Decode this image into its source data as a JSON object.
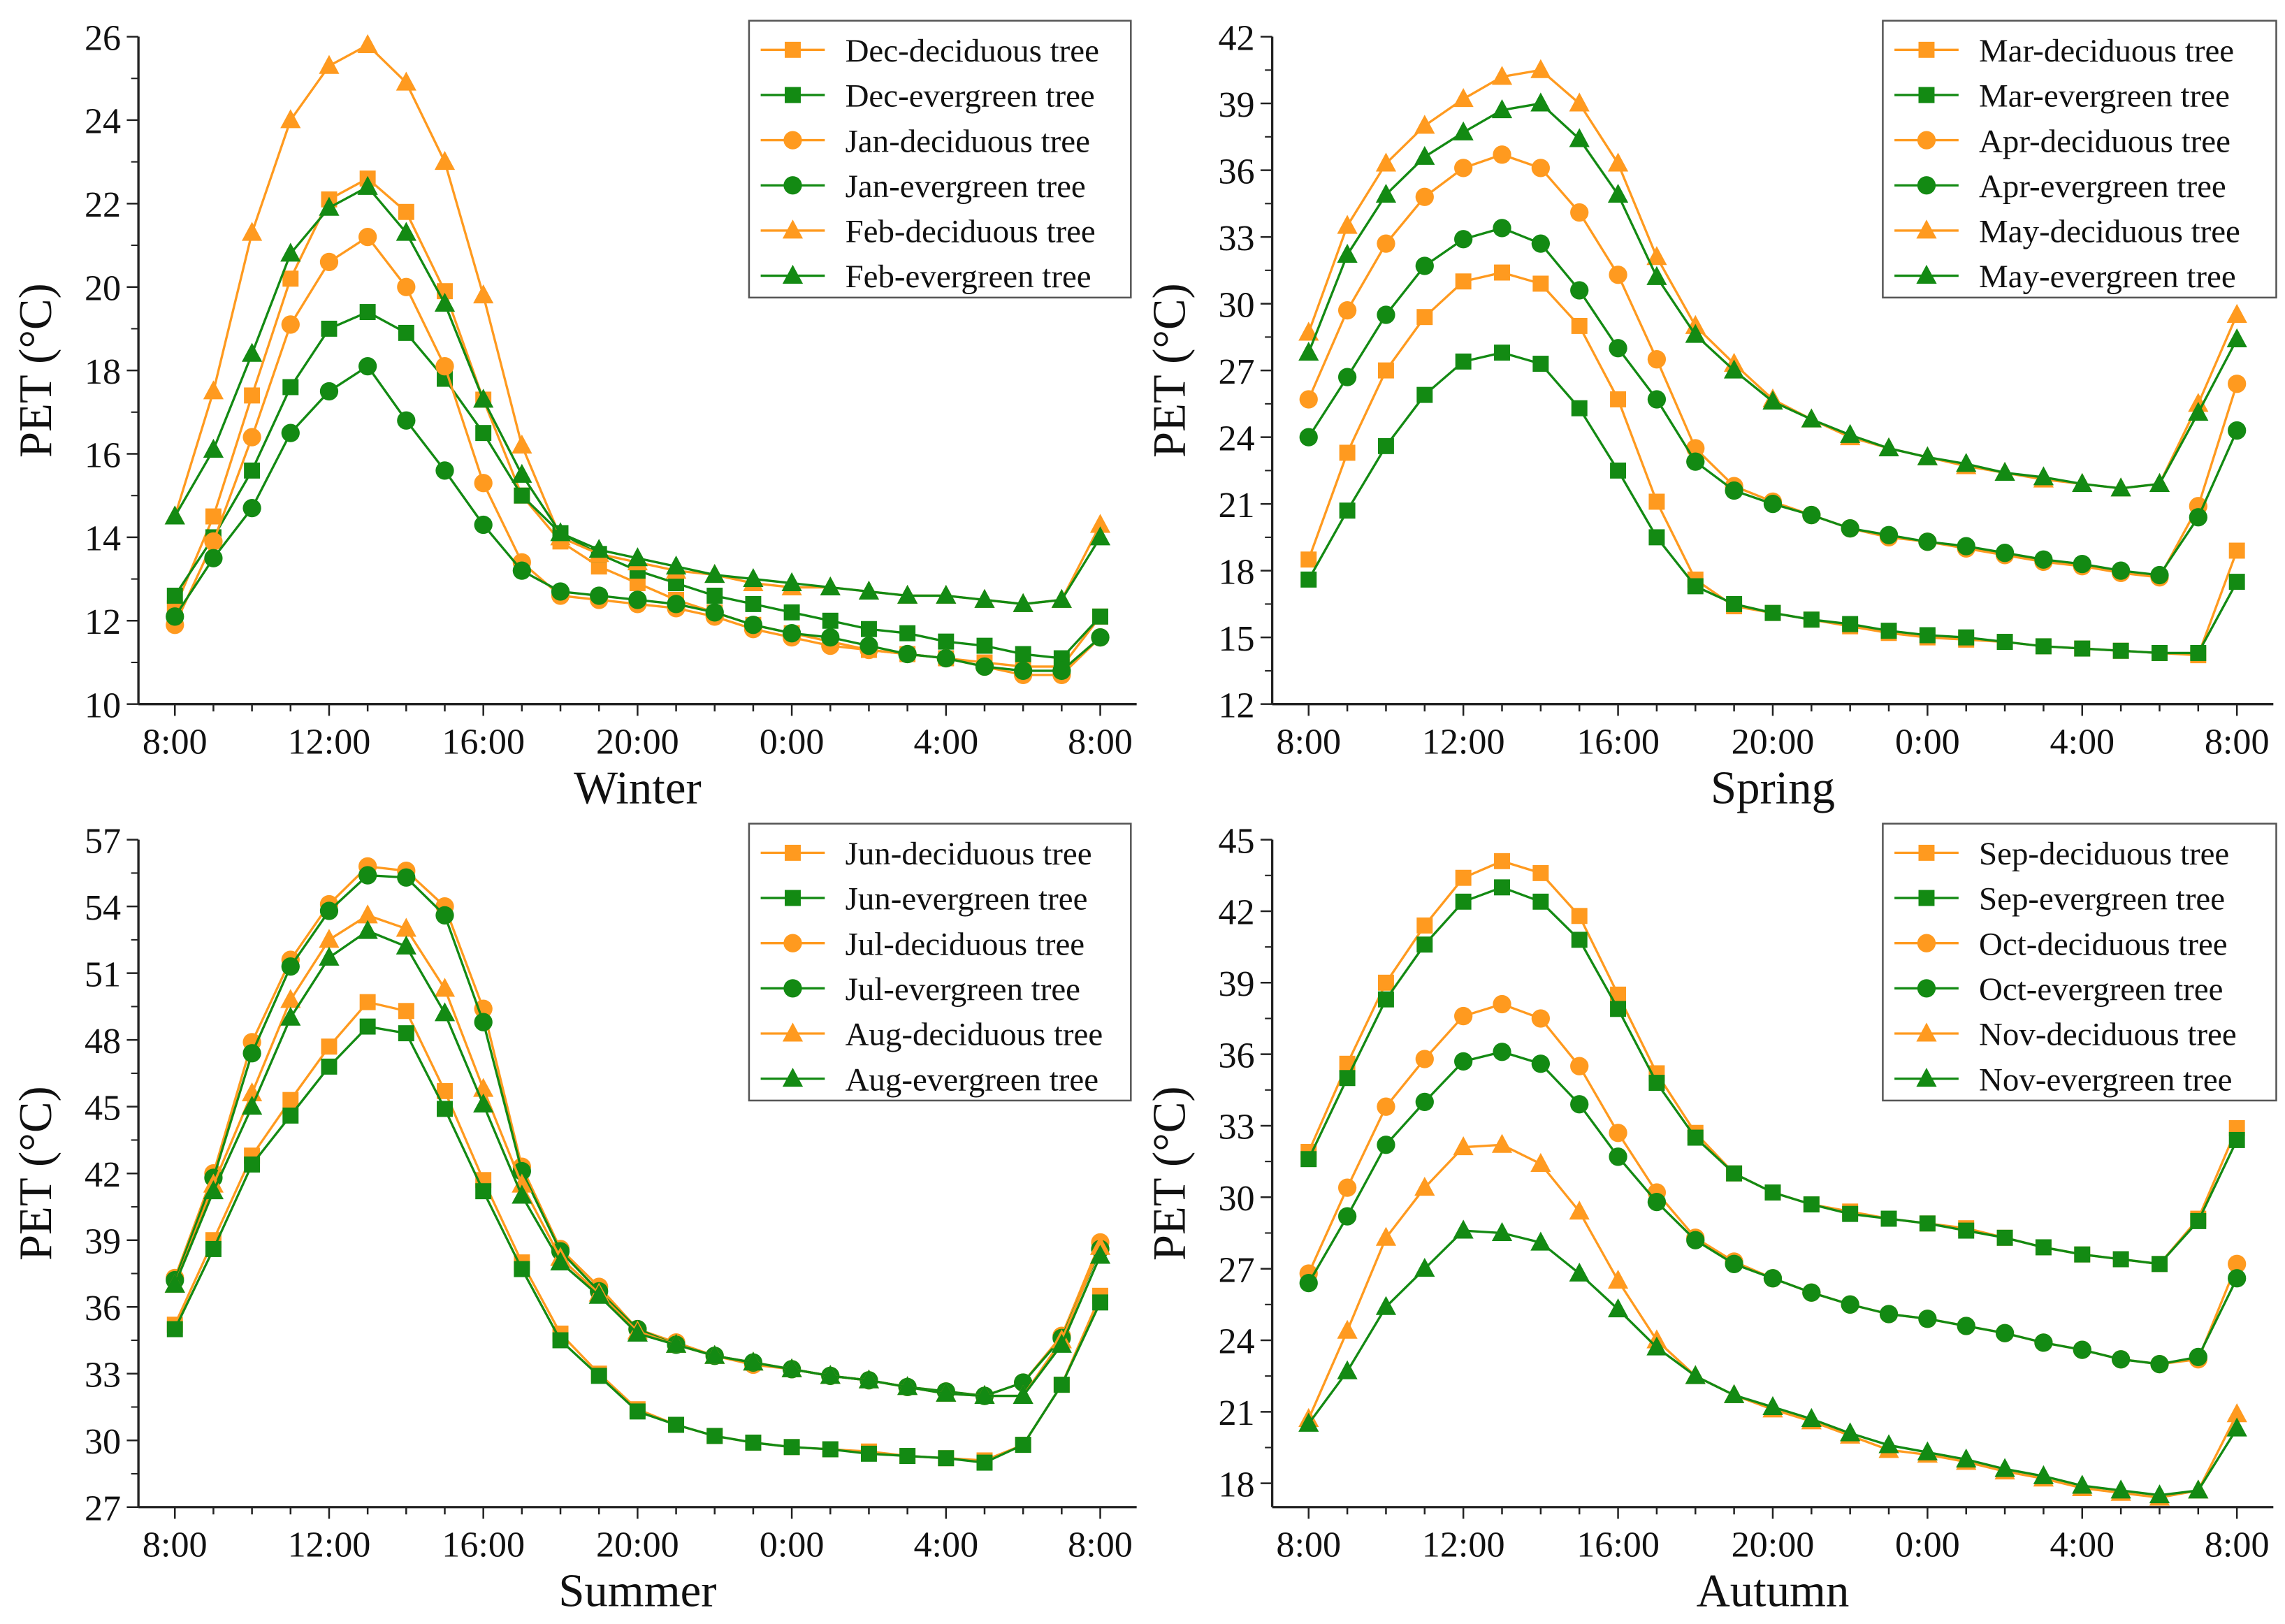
{
  "colors": {
    "deciduous": "#FF9A1F",
    "evergreen": "#138A13"
  },
  "chart_data": [
    {
      "type": "line",
      "xlabel": "Winter",
      "ylabel": "PET (°C)",
      "ylim": [
        10,
        26
      ],
      "yticks": [
        10,
        12,
        14,
        16,
        18,
        20,
        22,
        24,
        26
      ],
      "xtick_labels": [
        "8:00",
        "12:00",
        "16:00",
        "20:00",
        "0:00",
        "4:00",
        "8:00"
      ],
      "x": [
        "8:00",
        "9:00",
        "10:00",
        "11:00",
        "12:00",
        "13:00",
        "14:00",
        "15:00",
        "16:00",
        "17:00",
        "18:00",
        "19:00",
        "20:00",
        "21:00",
        "22:00",
        "23:00",
        "0:00",
        "1:00",
        "2:00",
        "3:00",
        "4:00",
        "5:00",
        "6:00",
        "7:00",
        "8:00"
      ],
      "legend": "top-right",
      "series": [
        {
          "name": "Dec-deciduous tree",
          "kind": "deciduous",
          "marker": "square",
          "values": [
            12.3,
            14.5,
            17.4,
            20.2,
            22.1,
            22.6,
            21.8,
            19.9,
            17.3,
            15.0,
            13.9,
            13.3,
            12.9,
            12.5,
            12.2,
            11.9,
            11.7,
            11.5,
            11.3,
            11.2,
            11.1,
            11.0,
            10.9,
            10.9,
            12.1
          ]
        },
        {
          "name": "Dec-evergreen tree",
          "kind": "evergreen",
          "marker": "square",
          "values": [
            12.6,
            14.0,
            15.6,
            17.6,
            19.0,
            19.4,
            18.9,
            17.8,
            16.5,
            15.0,
            14.1,
            13.6,
            13.2,
            12.9,
            12.6,
            12.4,
            12.2,
            12.0,
            11.8,
            11.7,
            11.5,
            11.4,
            11.2,
            11.1,
            12.1
          ]
        },
        {
          "name": "Jan-deciduous tree",
          "kind": "deciduous",
          "marker": "circle",
          "values": [
            11.9,
            13.9,
            16.4,
            19.1,
            20.6,
            21.2,
            20.0,
            18.1,
            15.3,
            13.4,
            12.6,
            12.5,
            12.4,
            12.3,
            12.1,
            11.8,
            11.6,
            11.4,
            11.3,
            11.2,
            11.1,
            10.9,
            10.7,
            10.7,
            11.6
          ]
        },
        {
          "name": "Jan-evergreen tree",
          "kind": "evergreen",
          "marker": "circle",
          "values": [
            12.1,
            13.5,
            14.7,
            16.5,
            17.5,
            18.1,
            16.8,
            15.6,
            14.3,
            13.2,
            12.7,
            12.6,
            12.5,
            12.4,
            12.2,
            11.9,
            11.7,
            11.6,
            11.4,
            11.2,
            11.1,
            10.9,
            10.8,
            10.8,
            11.6
          ]
        },
        {
          "name": "Feb-deciduous tree",
          "kind": "deciduous",
          "marker": "triangle",
          "values": [
            14.5,
            17.5,
            21.3,
            24.0,
            25.3,
            25.8,
            24.9,
            23.0,
            19.8,
            16.2,
            14.0,
            13.6,
            13.4,
            13.2,
            13.1,
            12.9,
            12.8,
            12.8,
            12.7,
            12.6,
            12.6,
            12.5,
            12.4,
            12.5,
            14.3
          ]
        },
        {
          "name": "Feb-evergreen tree",
          "kind": "evergreen",
          "marker": "triangle",
          "values": [
            14.5,
            16.1,
            18.4,
            20.8,
            21.9,
            22.4,
            21.3,
            19.6,
            17.3,
            15.5,
            14.1,
            13.7,
            13.5,
            13.3,
            13.1,
            13.0,
            12.9,
            12.8,
            12.7,
            12.6,
            12.6,
            12.5,
            12.4,
            12.5,
            14.0
          ]
        }
      ]
    },
    {
      "type": "line",
      "xlabel": "Spring",
      "ylabel": "PET (°C)",
      "ylim": [
        12,
        42
      ],
      "yticks": [
        12,
        15,
        18,
        21,
        24,
        27,
        30,
        33,
        36,
        39,
        42
      ],
      "xtick_labels": [
        "8:00",
        "12:00",
        "16:00",
        "20:00",
        "0:00",
        "4:00",
        "8:00"
      ],
      "x": [
        "8:00",
        "9:00",
        "10:00",
        "11:00",
        "12:00",
        "13:00",
        "14:00",
        "15:00",
        "16:00",
        "17:00",
        "18:00",
        "19:00",
        "20:00",
        "21:00",
        "22:00",
        "23:00",
        "0:00",
        "1:00",
        "2:00",
        "3:00",
        "4:00",
        "5:00",
        "6:00",
        "7:00",
        "8:00"
      ],
      "legend": "top-right",
      "series": [
        {
          "name": "Mar-deciduous tree",
          "kind": "deciduous",
          "marker": "square",
          "values": [
            18.5,
            23.3,
            27.0,
            29.4,
            31.0,
            31.4,
            30.9,
            29.0,
            25.7,
            21.1,
            17.6,
            16.4,
            16.1,
            15.8,
            15.5,
            15.2,
            15.0,
            14.9,
            14.8,
            14.6,
            14.5,
            14.4,
            14.3,
            14.2,
            18.9
          ]
        },
        {
          "name": "Mar-evergreen tree",
          "kind": "evergreen",
          "marker": "square",
          "values": [
            17.6,
            20.7,
            23.6,
            25.9,
            27.4,
            27.8,
            27.3,
            25.3,
            22.5,
            19.5,
            17.3,
            16.5,
            16.1,
            15.8,
            15.6,
            15.3,
            15.1,
            15.0,
            14.8,
            14.6,
            14.5,
            14.4,
            14.3,
            14.3,
            17.5
          ]
        },
        {
          "name": "Apr-deciduous tree",
          "kind": "deciduous",
          "marker": "circle",
          "values": [
            25.7,
            29.7,
            32.7,
            34.8,
            36.1,
            36.7,
            36.1,
            34.1,
            31.3,
            27.5,
            23.5,
            21.8,
            21.1,
            20.5,
            19.9,
            19.5,
            19.3,
            19.0,
            18.7,
            18.4,
            18.2,
            17.9,
            17.7,
            20.9,
            26.4
          ]
        },
        {
          "name": "Apr-evergreen tree",
          "kind": "evergreen",
          "marker": "circle",
          "values": [
            24.0,
            26.7,
            29.5,
            31.7,
            32.9,
            33.4,
            32.7,
            30.6,
            28.0,
            25.7,
            22.9,
            21.6,
            21.0,
            20.5,
            19.9,
            19.6,
            19.3,
            19.1,
            18.8,
            18.5,
            18.3,
            18.0,
            17.8,
            20.4,
            24.3
          ]
        },
        {
          "name": "May-deciduous tree",
          "kind": "deciduous",
          "marker": "triangle",
          "values": [
            28.7,
            33.5,
            36.3,
            38.0,
            39.2,
            40.2,
            40.5,
            39.0,
            36.3,
            32.1,
            29.0,
            27.3,
            25.7,
            24.8,
            24.0,
            23.5,
            23.1,
            22.7,
            22.4,
            22.1,
            21.9,
            21.7,
            21.9,
            25.5,
            29.5
          ]
        },
        {
          "name": "May-evergreen tree",
          "kind": "evergreen",
          "marker": "triangle",
          "values": [
            27.8,
            32.2,
            34.9,
            36.6,
            37.7,
            38.7,
            39.0,
            37.4,
            34.9,
            31.2,
            28.6,
            27.0,
            25.6,
            24.8,
            24.1,
            23.5,
            23.1,
            22.8,
            22.4,
            22.2,
            21.9,
            21.7,
            21.9,
            25.1,
            28.4
          ]
        }
      ]
    },
    {
      "type": "line",
      "xlabel": "Summer",
      "ylabel": "PET (°C)",
      "ylim": [
        27,
        57
      ],
      "yticks": [
        27,
        30,
        33,
        36,
        39,
        42,
        45,
        48,
        51,
        54,
        57
      ],
      "xtick_labels": [
        "8:00",
        "12:00",
        "16:00",
        "20:00",
        "0:00",
        "4:00",
        "8:00"
      ],
      "x": [
        "8:00",
        "9:00",
        "10:00",
        "11:00",
        "12:00",
        "13:00",
        "14:00",
        "15:00",
        "16:00",
        "17:00",
        "18:00",
        "19:00",
        "20:00",
        "21:00",
        "22:00",
        "23:00",
        "0:00",
        "1:00",
        "2:00",
        "3:00",
        "4:00",
        "5:00",
        "6:00",
        "7:00",
        "8:00"
      ],
      "legend": "top-right",
      "series": [
        {
          "name": "Jun-deciduous tree",
          "kind": "deciduous",
          "marker": "square",
          "values": [
            35.2,
            39.0,
            42.8,
            45.3,
            47.7,
            49.7,
            49.3,
            45.7,
            41.7,
            38.0,
            34.8,
            33.0,
            31.4,
            30.7,
            30.2,
            29.9,
            29.7,
            29.6,
            29.5,
            29.3,
            29.2,
            29.1,
            29.8,
            32.5,
            36.5
          ]
        },
        {
          "name": "Jun-evergreen tree",
          "kind": "evergreen",
          "marker": "square",
          "values": [
            35.0,
            38.6,
            42.4,
            44.6,
            46.8,
            48.6,
            48.3,
            44.9,
            41.2,
            37.7,
            34.5,
            32.9,
            31.3,
            30.7,
            30.2,
            29.9,
            29.7,
            29.6,
            29.4,
            29.3,
            29.2,
            29.0,
            29.8,
            32.5,
            36.2
          ]
        },
        {
          "name": "Jul-deciduous tree",
          "kind": "deciduous",
          "marker": "circle",
          "values": [
            37.3,
            42.0,
            47.9,
            51.6,
            54.1,
            55.8,
            55.6,
            54.0,
            49.4,
            42.3,
            38.6,
            36.9,
            35.0,
            34.4,
            33.8,
            33.4,
            33.2,
            32.9,
            32.7,
            32.4,
            32.2,
            32.0,
            32.6,
            34.7,
            38.9
          ]
        },
        {
          "name": "Jul-evergreen tree",
          "kind": "evergreen",
          "marker": "circle",
          "values": [
            37.2,
            41.8,
            47.4,
            51.3,
            53.8,
            55.4,
            55.3,
            53.6,
            48.8,
            42.1,
            38.5,
            36.7,
            35.0,
            34.3,
            33.8,
            33.5,
            33.2,
            32.9,
            32.7,
            32.4,
            32.2,
            32.0,
            32.6,
            34.6,
            38.6
          ]
        },
        {
          "name": "Aug-deciduous tree",
          "kind": "deciduous",
          "marker": "triangle",
          "values": [
            37.0,
            41.5,
            45.6,
            49.8,
            52.5,
            53.6,
            53.0,
            50.3,
            45.8,
            41.5,
            38.2,
            36.6,
            34.9,
            34.3,
            33.8,
            33.5,
            33.2,
            32.9,
            32.7,
            32.4,
            32.1,
            32.0,
            32.0,
            34.5,
            38.7
          ]
        },
        {
          "name": "Aug-evergreen tree",
          "kind": "evergreen",
          "marker": "triangle",
          "values": [
            37.0,
            41.2,
            45.0,
            49.0,
            51.7,
            52.9,
            52.2,
            49.2,
            45.1,
            41.0,
            38.0,
            36.5,
            34.8,
            34.3,
            33.8,
            33.5,
            33.2,
            32.9,
            32.7,
            32.4,
            32.1,
            32.0,
            32.0,
            34.3,
            38.3
          ]
        }
      ]
    },
    {
      "type": "line",
      "xlabel": "Autumn",
      "ylabel": "PET (°C)",
      "ylim": [
        17,
        45
      ],
      "yticks": [
        18,
        21,
        24,
        27,
        30,
        33,
        36,
        39,
        42,
        45
      ],
      "xtick_labels": [
        "8:00",
        "12:00",
        "16:00",
        "20:00",
        "0:00",
        "4:00",
        "8:00"
      ],
      "x": [
        "8:00",
        "9:00",
        "10:00",
        "11:00",
        "12:00",
        "13:00",
        "14:00",
        "15:00",
        "16:00",
        "17:00",
        "18:00",
        "19:00",
        "20:00",
        "21:00",
        "22:00",
        "23:00",
        "0:00",
        "1:00",
        "2:00",
        "3:00",
        "4:00",
        "5:00",
        "6:00",
        "7:00",
        "8:00"
      ],
      "legend": "top-right",
      "series": [
        {
          "name": "Sep-deciduous tree",
          "kind": "deciduous",
          "marker": "square",
          "values": [
            31.9,
            35.6,
            39.0,
            41.4,
            43.4,
            44.1,
            43.6,
            41.8,
            38.5,
            35.2,
            32.7,
            31.0,
            30.2,
            29.7,
            29.4,
            29.1,
            28.9,
            28.7,
            28.3,
            27.9,
            27.6,
            27.4,
            27.2,
            29.1,
            32.9
          ]
        },
        {
          "name": "Sep-evergreen tree",
          "kind": "evergreen",
          "marker": "square",
          "values": [
            31.6,
            35.0,
            38.3,
            40.6,
            42.4,
            43.0,
            42.4,
            40.8,
            37.9,
            34.8,
            32.5,
            31.0,
            30.2,
            29.7,
            29.3,
            29.1,
            28.9,
            28.6,
            28.3,
            27.9,
            27.6,
            27.4,
            27.2,
            29.0,
            32.4
          ]
        },
        {
          "name": "Oct-deciduous tree",
          "kind": "deciduous",
          "marker": "circle",
          "values": [
            26.8,
            30.4,
            33.8,
            35.8,
            37.6,
            38.1,
            37.5,
            35.5,
            32.7,
            30.2,
            28.3,
            27.3,
            26.6,
            26.0,
            25.5,
            25.1,
            24.9,
            24.6,
            24.3,
            23.9,
            23.6,
            23.2,
            23.0,
            23.2,
            27.2
          ]
        },
        {
          "name": "Oct-evergreen tree",
          "kind": "evergreen",
          "marker": "circle",
          "values": [
            26.4,
            29.2,
            32.2,
            34.0,
            35.7,
            36.1,
            35.6,
            33.9,
            31.7,
            29.8,
            28.2,
            27.2,
            26.6,
            26.0,
            25.5,
            25.1,
            24.9,
            24.6,
            24.3,
            23.9,
            23.6,
            23.2,
            23.0,
            23.3,
            26.6
          ]
        },
        {
          "name": "Nov-deciduous tree",
          "kind": "deciduous",
          "marker": "triangle",
          "values": [
            20.7,
            24.4,
            28.3,
            30.4,
            32.1,
            32.2,
            31.4,
            29.4,
            26.5,
            24.0,
            22.5,
            21.7,
            21.1,
            20.6,
            20.0,
            19.4,
            19.2,
            18.9,
            18.5,
            18.2,
            17.8,
            17.6,
            17.4,
            17.7,
            20.9
          ]
        },
        {
          "name": "Nov-evergreen tree",
          "kind": "evergreen",
          "marker": "triangle",
          "values": [
            20.5,
            22.7,
            25.4,
            27.0,
            28.6,
            28.5,
            28.1,
            26.8,
            25.3,
            23.7,
            22.5,
            21.7,
            21.2,
            20.7,
            20.1,
            19.6,
            19.3,
            19.0,
            18.6,
            18.3,
            17.9,
            17.7,
            17.5,
            17.7,
            20.3
          ]
        }
      ]
    }
  ]
}
